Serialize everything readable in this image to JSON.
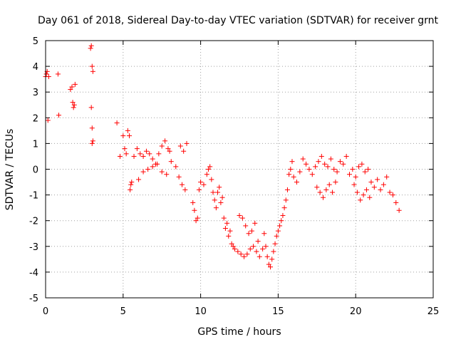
{
  "chart_data": {
    "type": "scatter",
    "title": "Day 061 of 2018, Sidereal Day-to-day VTEC variation (SDTVAR) for receiver grnt",
    "xlabel": "GPS time / hours",
    "ylabel": "SDTVAR / TECUs",
    "xlim": [
      0,
      25
    ],
    "ylim": [
      -5,
      5
    ],
    "xticks": [
      0,
      5,
      10,
      15,
      20,
      25
    ],
    "yticks": [
      -5,
      -4,
      -3,
      -2,
      -1,
      0,
      1,
      2,
      3,
      4,
      5
    ],
    "grid": true,
    "marker": "+",
    "color": "#ff0000",
    "series": [
      {
        "name": "SDTVAR",
        "x": [
          0.0,
          0.05,
          0.1,
          0.15,
          0.2,
          0.8,
          0.85,
          1.6,
          1.7,
          1.8,
          1.9,
          1.75,
          1.85,
          2.9,
          2.95,
          3.0,
          3.05,
          2.95,
          3.0,
          3.05,
          3.0,
          4.6,
          4.8,
          5.0,
          5.1,
          5.2,
          5.3,
          5.4,
          5.5,
          5.45,
          5.55,
          5.7,
          5.9,
          6.1,
          6.3,
          6.5,
          6.7,
          6.9,
          7.1,
          7.3,
          7.5,
          7.7,
          7.9,
          8.0,
          6.0,
          6.3,
          6.6,
          6.9,
          7.2,
          7.5,
          7.8,
          8.1,
          8.4,
          8.6,
          8.8,
          9.0,
          8.7,
          8.9,
          9.1,
          9.5,
          9.6,
          9.7,
          9.8,
          9.9,
          10.0,
          10.2,
          10.4,
          10.5,
          10.6,
          10.7,
          10.8,
          10.9,
          11.0,
          11.1,
          11.2,
          11.3,
          11.4,
          11.5,
          11.6,
          11.7,
          11.8,
          11.9,
          12.0,
          12.1,
          12.2,
          12.4,
          12.6,
          12.8,
          13.0,
          13.2,
          13.4,
          13.6,
          13.8,
          14.0,
          12.5,
          12.7,
          12.9,
          13.1,
          13.3,
          13.5,
          13.7,
          14.1,
          14.2,
          14.3,
          14.4,
          14.5,
          14.6,
          14.7,
          14.8,
          14.9,
          15.0,
          15.1,
          15.2,
          15.3,
          15.4,
          15.5,
          15.6,
          15.7,
          15.8,
          15.9,
          16.0,
          16.2,
          16.4,
          16.6,
          16.8,
          17.0,
          17.2,
          17.4,
          17.6,
          17.8,
          18.0,
          18.2,
          18.4,
          18.6,
          18.8,
          19.0,
          19.2,
          19.4,
          17.5,
          17.7,
          17.9,
          18.1,
          18.3,
          18.5,
          18.7,
          19.6,
          19.8,
          20.0,
          20.2,
          20.4,
          20.6,
          20.8,
          21.0,
          21.2,
          21.4,
          21.6,
          21.8,
          22.0,
          22.2,
          22.4,
          22.6,
          22.8,
          19.9,
          20.1,
          20.3,
          20.5,
          20.7,
          20.9
        ],
        "y": [
          3.6,
          3.7,
          3.8,
          1.9,
          3.6,
          3.7,
          2.1,
          3.1,
          3.2,
          2.4,
          3.3,
          2.6,
          2.5,
          4.7,
          4.8,
          4.0,
          3.8,
          2.4,
          1.6,
          1.1,
          1.0,
          1.8,
          0.5,
          1.3,
          0.8,
          0.6,
          1.5,
          1.3,
          -0.6,
          -0.8,
          -0.5,
          0.5,
          0.8,
          0.6,
          0.5,
          0.7,
          0.6,
          0.4,
          0.2,
          0.6,
          0.9,
          1.1,
          0.8,
          0.7,
          -0.4,
          -0.1,
          0.0,
          0.1,
          0.2,
          -0.1,
          -0.2,
          0.3,
          0.1,
          -0.3,
          -0.6,
          -0.8,
          0.9,
          0.7,
          1.0,
          -1.3,
          -1.6,
          -2.0,
          -1.9,
          -0.8,
          -0.5,
          -0.6,
          -0.2,
          0.0,
          0.1,
          -0.4,
          -0.9,
          -1.2,
          -1.5,
          -0.9,
          -0.7,
          -1.3,
          -1.1,
          -1.9,
          -2.3,
          -2.1,
          -2.6,
          -2.4,
          -2.9,
          -3.0,
          -3.1,
          -3.2,
          -3.3,
          -3.4,
          -3.3,
          -3.1,
          -3.0,
          -3.2,
          -3.4,
          -3.1,
          -1.8,
          -1.9,
          -2.2,
          -2.5,
          -2.4,
          -2.1,
          -2.8,
          -2.5,
          -3.0,
          -3.4,
          -3.7,
          -3.8,
          -3.5,
          -3.2,
          -2.9,
          -2.6,
          -2.4,
          -2.2,
          -2.0,
          -1.8,
          -1.5,
          -1.2,
          -0.8,
          -0.2,
          0.0,
          0.3,
          -0.3,
          -0.5,
          -0.1,
          0.4,
          0.2,
          0.0,
          -0.2,
          0.1,
          0.3,
          0.5,
          0.2,
          0.1,
          0.4,
          0.0,
          -0.1,
          0.3,
          0.2,
          0.5,
          -0.7,
          -0.9,
          -1.1,
          -0.8,
          -0.6,
          -0.9,
          -0.5,
          -0.2,
          0.0,
          -0.3,
          0.1,
          0.2,
          -0.1,
          0.0,
          -0.5,
          -0.7,
          -0.4,
          -0.8,
          -0.6,
          -0.3,
          -0.9,
          -1.0,
          -1.3,
          -1.6,
          -0.6,
          -0.9,
          -1.2,
          -1.0,
          -0.8,
          -1.1
        ]
      }
    ]
  }
}
